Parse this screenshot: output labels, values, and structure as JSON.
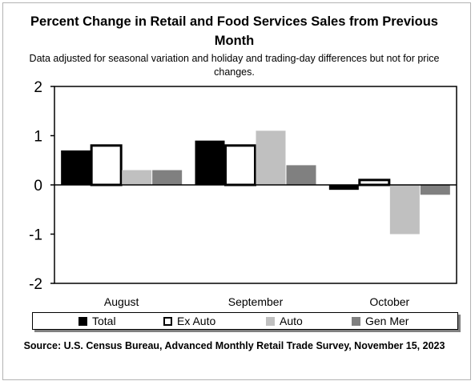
{
  "header": {
    "title": "Percent Change in Retail and Food Services Sales from Previous Month",
    "subtitle": "Data adjusted for seasonal variation and holiday and trading-day differences but not for price changes."
  },
  "footer": {
    "source": "Source: U.S. Census Bureau, Advanced Monthly Retail Trade Survey, November 15, 2023"
  },
  "colors": {
    "Total": "#000000",
    "Ex Auto": "#ffffff",
    "Auto": "#c0c0c0",
    "Gen Mer": "#808080",
    "axis": "#000000",
    "frame": "#b3b3b3"
  },
  "chart_data": {
    "type": "bar",
    "title": "Percent Change in Retail and Food Services Sales from Previous Month",
    "subtitle": "Data adjusted for seasonal variation and holiday and trading-day differences but not for price changes.",
    "categories": [
      "August",
      "September",
      "October"
    ],
    "series": [
      {
        "name": "Total",
        "values": [
          0.7,
          0.9,
          -0.1
        ]
      },
      {
        "name": "Ex Auto",
        "values": [
          0.8,
          0.8,
          0.1
        ]
      },
      {
        "name": "Auto",
        "values": [
          0.3,
          1.1,
          -1.0
        ]
      },
      {
        "name": "Gen Mer",
        "values": [
          0.3,
          0.4,
          -0.2
        ]
      }
    ],
    "ylim": [
      -2,
      2
    ],
    "yticks": [
      -2,
      -1,
      0,
      1,
      2
    ],
    "xlabel": "",
    "ylabel": "",
    "grid": false,
    "legend": "bottom",
    "source": "Source: U.S. Census Bureau, Advanced Monthly Retail Trade Survey, November 15, 2023"
  }
}
